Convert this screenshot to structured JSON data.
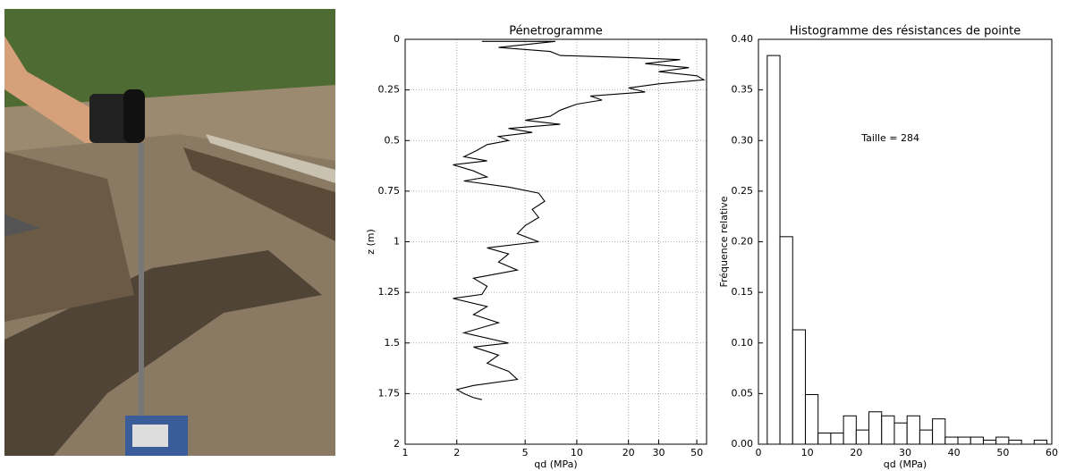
{
  "chart_data": [
    {
      "type": "line",
      "title": "Pénetrogramme",
      "xlabel": "qd (MPa)",
      "ylabel": "z (m)",
      "xscale": "log",
      "xlim": [
        1,
        57
      ],
      "xticks": [
        1,
        2,
        5,
        10,
        20,
        30,
        50
      ],
      "ylim": [
        0,
        2
      ],
      "y_inverted": true,
      "yticks": [
        0,
        0.25,
        0.5,
        0.75,
        1,
        1.25,
        1.5,
        1.75,
        2
      ],
      "grid": true,
      "color": "#000000",
      "x": [
        2.8,
        7.5,
        3.5,
        7,
        8,
        20,
        40,
        25,
        45,
        30,
        50,
        55,
        30,
        20,
        25,
        12,
        14,
        10,
        8,
        7,
        5,
        8,
        4,
        5.5,
        3.5,
        4,
        3,
        2.6,
        2.2,
        3,
        1.9,
        2.5,
        3,
        2.2,
        4,
        6,
        6.5,
        5.5,
        6,
        5,
        4.5,
        6,
        3,
        4,
        3.5,
        4.5,
        2.5,
        3,
        2.8,
        1.9,
        3,
        2.5,
        3.5,
        2.2,
        4,
        2.5,
        3.5,
        3,
        4,
        4.5,
        2.5,
        2,
        2.2,
        2.5,
        2.8
      ],
      "values": [
        0.01,
        0.01,
        0.04,
        0.06,
        0.08,
        0.09,
        0.1,
        0.12,
        0.14,
        0.16,
        0.18,
        0.2,
        0.22,
        0.24,
        0.26,
        0.28,
        0.3,
        0.32,
        0.35,
        0.38,
        0.4,
        0.42,
        0.44,
        0.46,
        0.48,
        0.5,
        0.52,
        0.55,
        0.58,
        0.6,
        0.62,
        0.65,
        0.68,
        0.7,
        0.73,
        0.76,
        0.8,
        0.84,
        0.88,
        0.92,
        0.96,
        1.0,
        1.03,
        1.06,
        1.1,
        1.14,
        1.18,
        1.22,
        1.26,
        1.28,
        1.32,
        1.36,
        1.4,
        1.45,
        1.5,
        1.52,
        1.56,
        1.6,
        1.64,
        1.68,
        1.71,
        1.73,
        1.75,
        1.77,
        1.78
      ]
    },
    {
      "type": "histogram",
      "title": "Histogramme des résistances de pointe",
      "xlabel": "qd (MPa)",
      "ylabel": "Fréquence relative",
      "annotation": "Taille = 284",
      "color": "#ffffff",
      "xlim": [
        0,
        60
      ],
      "xticks": [
        0,
        10,
        20,
        30,
        40,
        50,
        60
      ],
      "ylim": [
        0,
        0.4
      ],
      "yticks": [
        {
          "value": 0,
          "label": "0.00"
        },
        {
          "value": 0.05,
          "label": "0.05"
        },
        {
          "value": 0.1,
          "label": "0.10"
        },
        {
          "value": 0.15,
          "label": "0.15"
        },
        {
          "value": 0.2,
          "label": "0.20"
        },
        {
          "value": 0.25,
          "label": "0.25"
        },
        {
          "value": 0.3,
          "label": "0.30"
        },
        {
          "value": 0.35,
          "label": "0.35"
        },
        {
          "value": 0.4,
          "label": "0.40"
        }
      ],
      "bins": [
        1.8,
        4.4,
        7.0,
        9.6,
        12.2,
        14.8,
        17.4,
        20.0,
        22.6,
        25.2,
        27.8,
        30.4,
        33.0,
        35.6,
        38.2,
        40.8,
        43.4,
        46.0,
        48.6,
        51.2,
        53.8,
        56.4,
        59.0
      ],
      "values": [
        0.384,
        0.205,
        0.113,
        0.049,
        0.011,
        0.011,
        0.028,
        0.014,
        0.032,
        0.028,
        0.021,
        0.028,
        0.014,
        0.025,
        0.007,
        0.007,
        0.007,
        0.004,
        0.007,
        0.004,
        0,
        0.004
      ]
    }
  ]
}
